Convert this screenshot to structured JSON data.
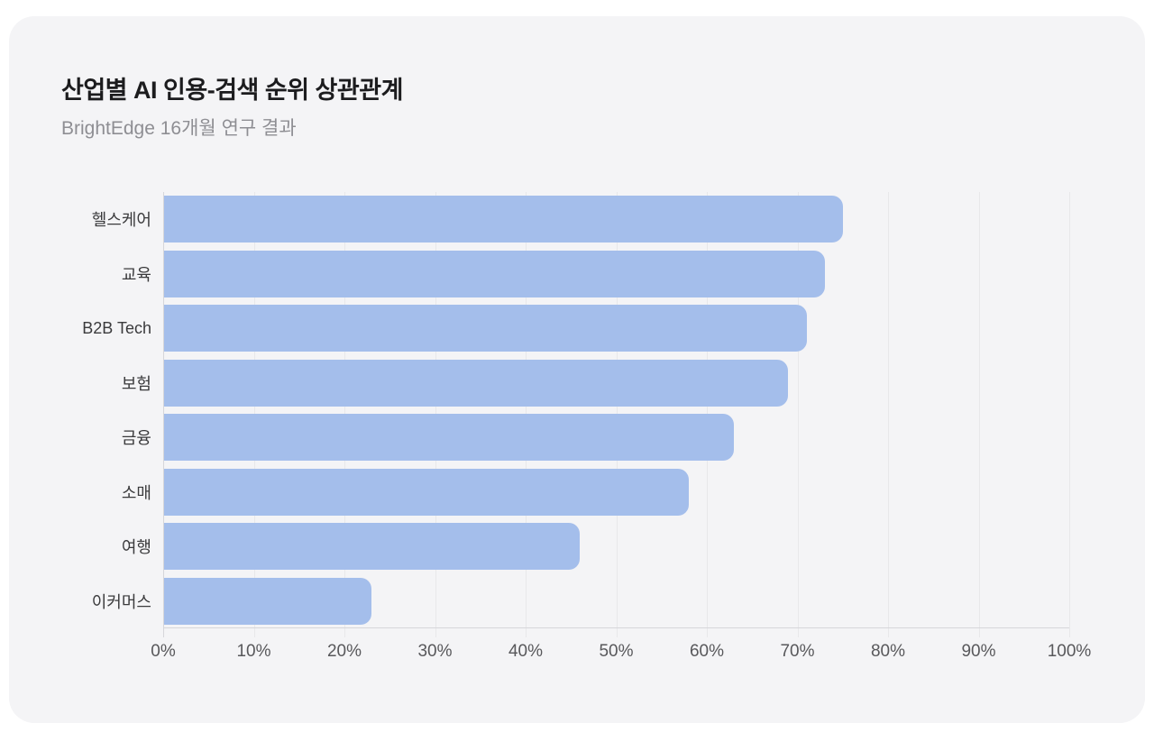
{
  "header": {
    "title": "산업별 AI 인용-검색 순위 상관관계",
    "subtitle": "BrightEdge 16개월 연구 결과"
  },
  "chart_data": {
    "type": "bar",
    "orientation": "horizontal",
    "title": "산업별 AI 인용-검색 순위 상관관계",
    "subtitle": "BrightEdge 16개월 연구 결과",
    "categories": [
      "헬스케어",
      "교육",
      "B2B Tech",
      "보험",
      "금융",
      "소매",
      "여행",
      "이커머스"
    ],
    "values": [
      75,
      73,
      71,
      69,
      63,
      58,
      46,
      23
    ],
    "unit": "%",
    "xlabel": "",
    "ylabel": "",
    "xlim": [
      0,
      100
    ],
    "x_tick_step": 10,
    "x_tick_labels": [
      "0%",
      "10%",
      "20%",
      "30%",
      "40%",
      "50%",
      "60%",
      "70%",
      "80%",
      "90%",
      "100%"
    ],
    "grid": "vertical",
    "legend": "none",
    "colors": {
      "bar": "#a4beeb",
      "card_background": "#f4f4f6",
      "page_background": "#ffffff",
      "gridline": "#e8e8ea",
      "axis_line": "#d6d6da",
      "title_text": "#1c1c1e",
      "subtitle_text": "#8e8e93",
      "category_text": "#3a3a3c",
      "tick_text": "#58585b"
    }
  }
}
